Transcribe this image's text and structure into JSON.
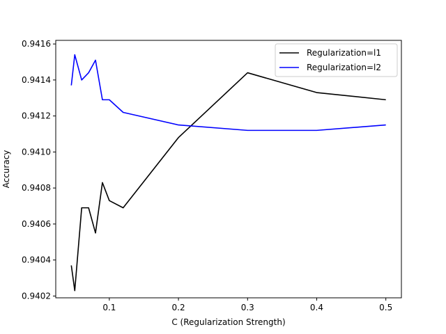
{
  "chart_data": {
    "type": "line",
    "title": "",
    "xlabel": "C (Regularization Strength)",
    "ylabel": "Accuracy",
    "xlim": [
      0.0225,
      0.5225
    ],
    "ylim": [
      0.94019,
      0.94162
    ],
    "xticks": [
      0.1,
      0.2,
      0.3,
      0.4,
      0.5
    ],
    "xtick_labels": [
      "0.1",
      "0.2",
      "0.3",
      "0.4",
      "0.5"
    ],
    "yticks": [
      0.9402,
      0.9404,
      0.9406,
      0.9408,
      0.941,
      0.9412,
      0.9414,
      0.9416
    ],
    "ytick_labels": [
      "0.9402",
      "0.9404",
      "0.9406",
      "0.9408",
      "0.9410",
      "0.9412",
      "0.9414",
      "0.9416"
    ],
    "grid": false,
    "legend_position": "top-right",
    "series": [
      {
        "name": "Regularization=l1",
        "color": "#000000",
        "x": [
          0.045,
          0.05,
          0.06,
          0.07,
          0.08,
          0.09,
          0.1,
          0.12,
          0.2,
          0.3,
          0.4,
          0.5
        ],
        "y": [
          0.94037,
          0.94023,
          0.94069,
          0.94069,
          0.94055,
          0.94083,
          0.94073,
          0.94069,
          0.94108,
          0.94144,
          0.94133,
          0.94129
        ]
      },
      {
        "name": "Regularization=l2",
        "color": "#0000ff",
        "x": [
          0.045,
          0.05,
          0.06,
          0.07,
          0.08,
          0.09,
          0.1,
          0.12,
          0.2,
          0.3,
          0.4,
          0.5
        ],
        "y": [
          0.94137,
          0.94154,
          0.9414,
          0.94144,
          0.94151,
          0.94129,
          0.94129,
          0.94122,
          0.94115,
          0.94112,
          0.94112,
          0.94115
        ]
      }
    ]
  }
}
